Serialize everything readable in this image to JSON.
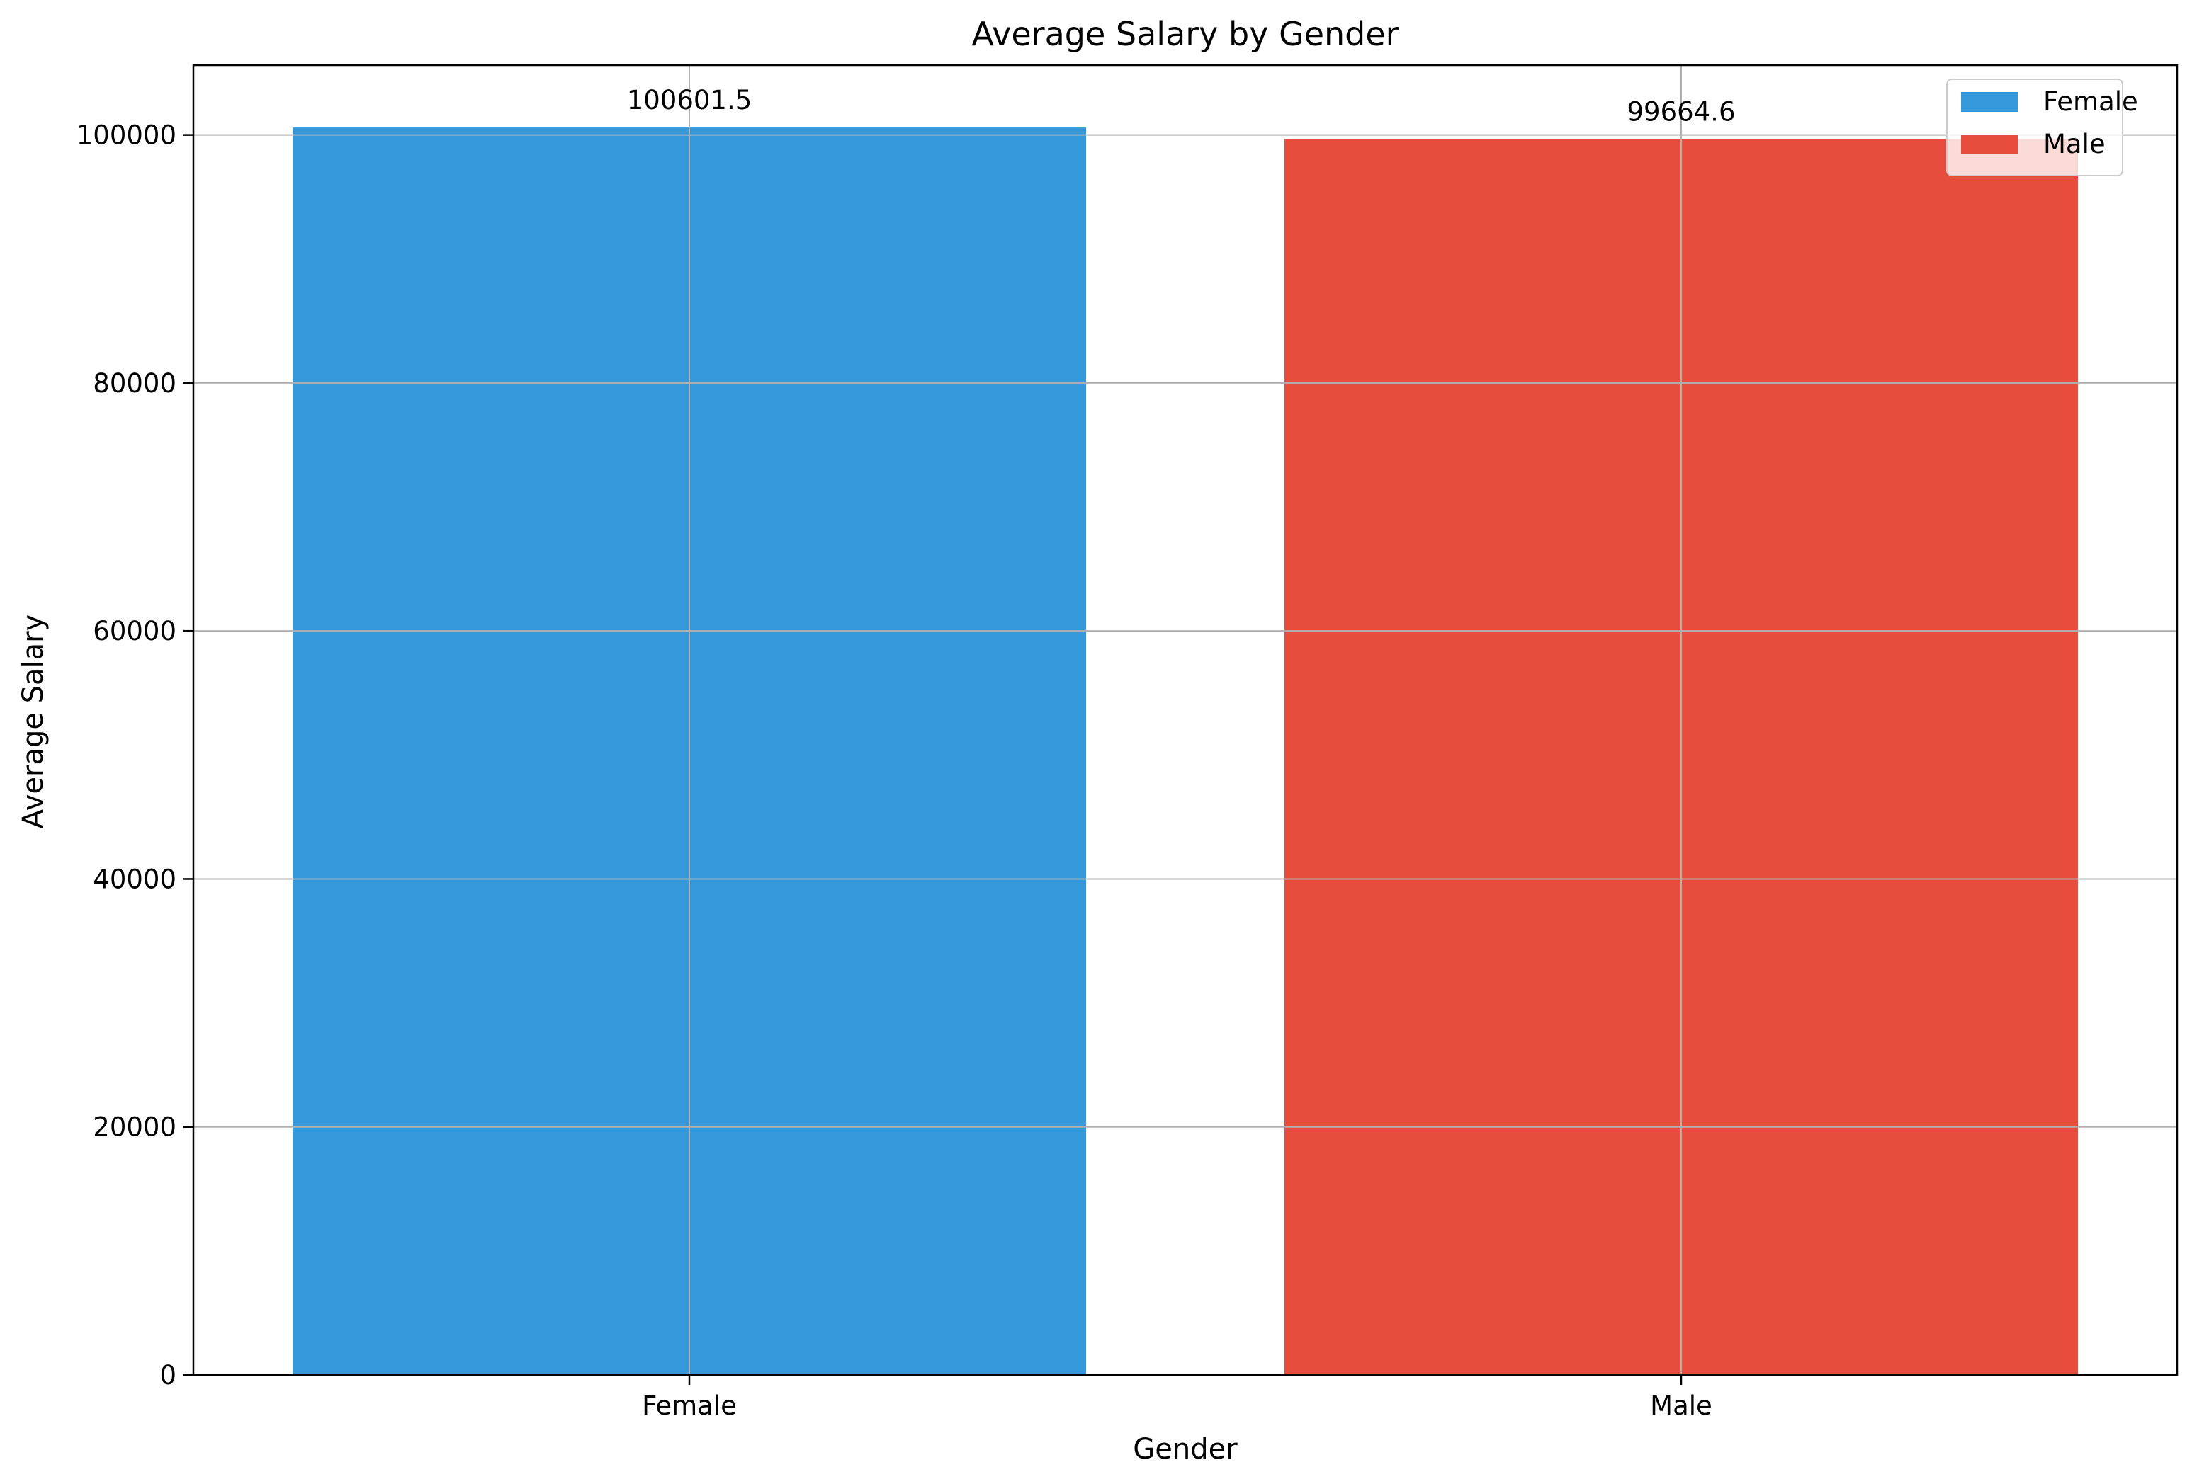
{
  "chart_data": {
    "type": "bar",
    "title": "Average Salary by Gender",
    "xlabel": "Gender",
    "ylabel": "Average Salary",
    "categories": [
      "Female",
      "Male"
    ],
    "values": [
      100601.5,
      99664.6
    ],
    "value_labels": [
      "100601.5",
      "99664.6"
    ],
    "colors": [
      "#3498db",
      "#e74c3c"
    ],
    "ylim": [
      0,
      105631.6
    ],
    "yticks": [
      0,
      20000,
      40000,
      60000,
      80000,
      100000
    ],
    "ytick_labels": [
      "0",
      "20000",
      "40000",
      "60000",
      "80000",
      "100000"
    ],
    "grid": true,
    "legend": {
      "placement": "top-right",
      "entries": [
        "Female",
        "Male"
      ]
    }
  }
}
